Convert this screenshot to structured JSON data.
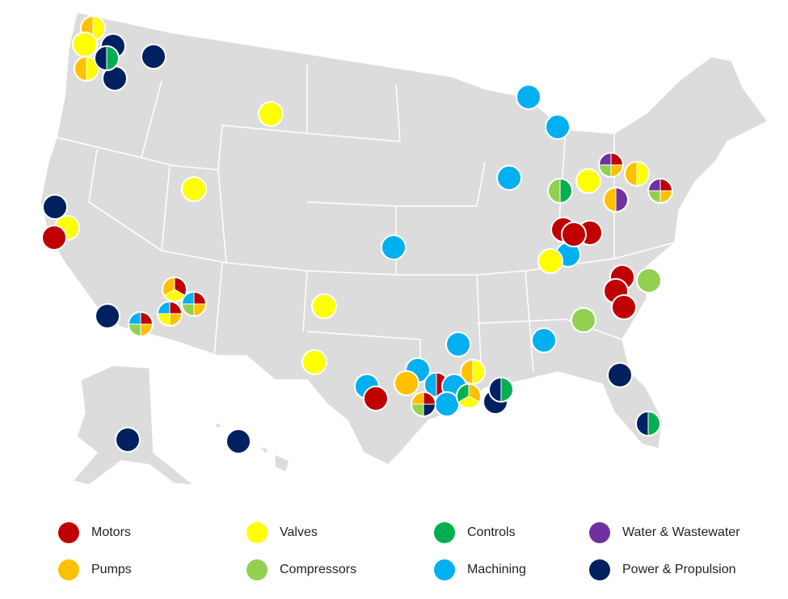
{
  "legend": {
    "items": [
      {
        "label": "Motors",
        "color": "#c00000"
      },
      {
        "label": "Pumps",
        "color": "#ffc000"
      },
      {
        "label": "Valves",
        "color": "#ffff00"
      },
      {
        "label": "Compressors",
        "color": "#92d050"
      },
      {
        "label": "Controls",
        "color": "#00b050"
      },
      {
        "label": "Machining",
        "color": "#00b0f0"
      },
      {
        "label": "Water & Wastewater",
        "color": "#7030a0"
      },
      {
        "label": "Power & Propulsion",
        "color": "#002060"
      }
    ]
  }
}
